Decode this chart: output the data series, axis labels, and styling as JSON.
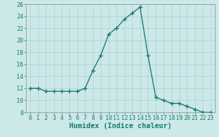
{
  "x": [
    0,
    1,
    2,
    3,
    4,
    5,
    6,
    7,
    8,
    9,
    10,
    11,
    12,
    13,
    14,
    15,
    16,
    17,
    18,
    19,
    20,
    21,
    22,
    23
  ],
  "y": [
    12,
    12,
    11.5,
    11.5,
    11.5,
    11.5,
    11.5,
    12,
    15,
    17.5,
    21,
    22,
    23.5,
    24.5,
    25.5,
    17.5,
    10.5,
    10,
    9.5,
    9.5,
    9,
    8.5,
    8,
    8
  ],
  "line_color": "#1a7a6e",
  "marker": "+",
  "bg_color": "#cce8e8",
  "grid_color": "#aed4d4",
  "xlabel": "Humidex (Indice chaleur)",
  "ylim": [
    8,
    26
  ],
  "xlim": [
    -0.5,
    23.5
  ],
  "yticks": [
    8,
    10,
    12,
    14,
    16,
    18,
    20,
    22,
    24,
    26
  ],
  "xticks": [
    0,
    1,
    2,
    3,
    4,
    5,
    6,
    7,
    8,
    9,
    10,
    11,
    12,
    13,
    14,
    15,
    16,
    17,
    18,
    19,
    20,
    21,
    22,
    23
  ],
  "xlabel_fontsize": 7.5,
  "tick_fontsize": 6,
  "line_width": 1.0,
  "marker_size": 4
}
